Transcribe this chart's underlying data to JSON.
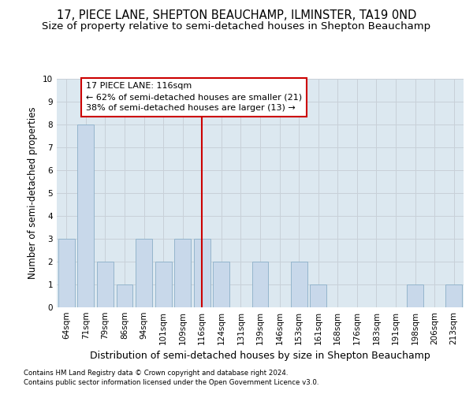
{
  "title": "17, PIECE LANE, SHEPTON BEAUCHAMP, ILMINSTER, TA19 0ND",
  "subtitle": "Size of property relative to semi-detached houses in Shepton Beauchamp",
  "xlabel": "Distribution of semi-detached houses by size in Shepton Beauchamp",
  "ylabel": "Number of semi-detached properties",
  "footnote1": "Contains HM Land Registry data © Crown copyright and database right 2024.",
  "footnote2": "Contains public sector information licensed under the Open Government Licence v3.0.",
  "categories": [
    "64sqm",
    "71sqm",
    "79sqm",
    "86sqm",
    "94sqm",
    "101sqm",
    "109sqm",
    "116sqm",
    "124sqm",
    "131sqm",
    "139sqm",
    "146sqm",
    "153sqm",
    "161sqm",
    "168sqm",
    "176sqm",
    "183sqm",
    "191sqm",
    "198sqm",
    "206sqm",
    "213sqm"
  ],
  "values": [
    3,
    8,
    2,
    1,
    3,
    2,
    3,
    3,
    2,
    0,
    2,
    0,
    2,
    1,
    0,
    0,
    0,
    0,
    1,
    0,
    1
  ],
  "bar_color": "#c8d8ea",
  "bar_edge_color": "#8bafc8",
  "highlight_index": 7,
  "highlight_line_color": "#cc0000",
  "annotation_box_color": "#cc0000",
  "annotation_text": "17 PIECE LANE: 116sqm\n← 62% of semi-detached houses are smaller (21)\n38% of semi-detached houses are larger (13) →",
  "ylim": [
    0,
    10
  ],
  "yticks": [
    0,
    1,
    2,
    3,
    4,
    5,
    6,
    7,
    8,
    9,
    10
  ],
  "grid_color": "#c8d0d8",
  "plot_bg_color": "#dce8f0",
  "background_color": "#ffffff",
  "title_fontsize": 10.5,
  "subtitle_fontsize": 9.5,
  "annotation_fontsize": 8,
  "tick_fontsize": 7.5,
  "ylabel_fontsize": 8.5,
  "xlabel_fontsize": 9
}
